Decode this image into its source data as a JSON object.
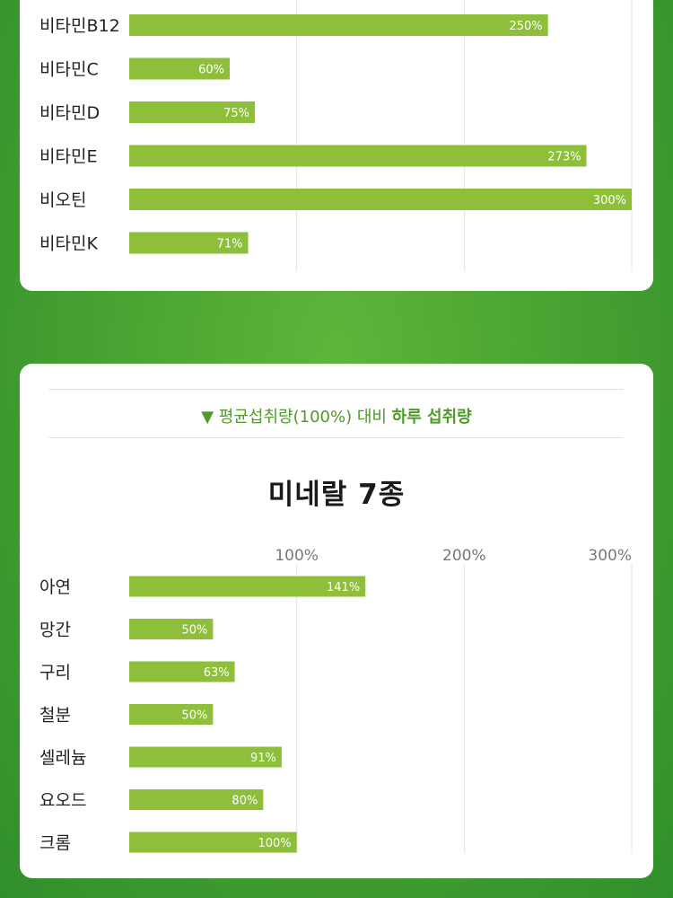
{
  "chart_data": [
    {
      "type": "bar",
      "orientation": "horizontal",
      "categories": [
        "비타민B12",
        "비타민C",
        "비타민D",
        "비타민E",
        "비오틴",
        "비타민K"
      ],
      "values": [
        250,
        60,
        75,
        273,
        300,
        71
      ],
      "value_labels": [
        "250%",
        "60%",
        "75%",
        "273%",
        "300%",
        "71%"
      ],
      "xlim": [
        0,
        300
      ],
      "grid_lines": [
        100,
        200,
        300
      ],
      "bar_color": "#8dbf3a"
    },
    {
      "type": "bar",
      "orientation": "horizontal",
      "title": "미네랄 7종",
      "categories": [
        "아연",
        "망간",
        "구리",
        "철분",
        "셀레늄",
        "요오드",
        "크롬"
      ],
      "values": [
        141,
        50,
        63,
        50,
        91,
        80,
        100
      ],
      "value_labels": [
        "141%",
        "50%",
        "63%",
        "50%",
        "91%",
        "80%",
        "100%"
      ],
      "tick_labels": [
        "100%",
        "200%",
        "300%"
      ],
      "xlim": [
        0,
        300
      ],
      "grid_lines": [
        100,
        200,
        300
      ],
      "bar_color": "#8dbf3a"
    }
  ],
  "subtitle": {
    "prefix": "▼ 평균섭취량(100%) 대비 ",
    "emphasis": "하루 섭취량"
  },
  "colors": {
    "accent": "#4e9a2a",
    "bar": "#8dbf3a",
    "background": "#4aa332"
  }
}
